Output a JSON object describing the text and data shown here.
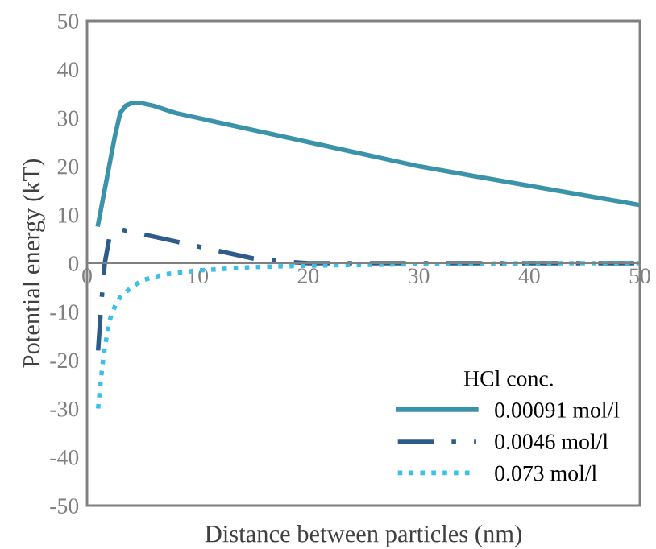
{
  "chart_data": {
    "type": "line",
    "xlabel": "Distance between particles (nm)",
    "ylabel": "Potential energy (kT)",
    "legend_title": "HCl conc.",
    "legend": "bottom right",
    "grid": false,
    "xlim": [
      0,
      50
    ],
    "ylim": [
      -50,
      50
    ],
    "xticks": [
      0,
      10,
      20,
      30,
      40,
      50
    ],
    "yticks": [
      -50,
      -40,
      -30,
      -20,
      -10,
      0,
      10,
      20,
      30,
      40,
      50
    ],
    "series": [
      {
        "name": "0.00091 mol/l",
        "color": "#3a93a8",
        "line_style": "solid",
        "x": [
          1,
          1.5,
          2,
          2.5,
          3,
          3.5,
          4,
          5,
          6,
          8,
          10,
          15,
          20,
          25,
          30,
          35,
          40,
          45,
          50
        ],
        "values": [
          8,
          14,
          20,
          26,
          31,
          32.5,
          33,
          33,
          32.5,
          31,
          30,
          27.5,
          25,
          22.5,
          20,
          18,
          16,
          14,
          12
        ]
      },
      {
        "name": "0.0046 mol/l",
        "color": "#2e5c8a",
        "line_style": "dashdot",
        "x": [
          1,
          1.3,
          1.6,
          2,
          2.5,
          3,
          4,
          6,
          8,
          10,
          12,
          15,
          18,
          20,
          30,
          40,
          50
        ],
        "values": [
          -18,
          -8,
          0,
          5,
          6.5,
          7,
          6.5,
          5.5,
          4.5,
          3.5,
          2.5,
          1,
          0.3,
          0,
          0,
          0,
          0
        ]
      },
      {
        "name": "0.073 mol/l",
        "color": "#3cc0e8",
        "line_style": "dotted",
        "x": [
          1,
          1.25,
          1.5,
          2,
          2.5,
          3,
          4,
          5,
          7,
          10,
          15,
          20,
          30,
          40,
          50
        ],
        "values": [
          -30,
          -24,
          -19,
          -12,
          -9,
          -7,
          -5,
          -3.5,
          -2.3,
          -1.5,
          -0.8,
          -0.5,
          -0.2,
          0,
          0
        ]
      }
    ]
  }
}
